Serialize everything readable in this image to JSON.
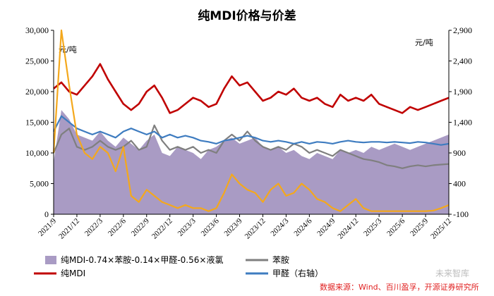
{
  "chart_data": {
    "type": "line",
    "title": "纯MDI价格与价差",
    "left_unit": "元/吨",
    "right_unit": "元/吨",
    "y_left": {
      "lim": [
        0,
        30000
      ],
      "ticks": [
        "0",
        "5,000",
        "10,000",
        "15,000",
        "20,000",
        "25,000",
        "30,000"
      ]
    },
    "y_right": {
      "lim": [
        -100,
        2900
      ],
      "ticks": [
        "-100",
        "400",
        "900",
        "1,400",
        "1,900",
        "2,400",
        "2,900"
      ]
    },
    "x_ticks": [
      "2021/9",
      "2021/12",
      "2022/3",
      "2022/6",
      "2022/9",
      "2022/12",
      "2023/3",
      "2023/6",
      "2023/9",
      "2023/12",
      "2024/3",
      "2024/6",
      "2024/9",
      "2024/12",
      "2025/3",
      "2025/6",
      "2025/9",
      "2025/12"
    ],
    "x_range": [
      "2021/9",
      "2025/12"
    ],
    "series": [
      {
        "name": "纯MDI-0.74×苯胺-0.14×甲醛-0.56×液氯",
        "kind": "area",
        "axis": "left",
        "color": "#a99bc4",
        "points": [
          [
            "2021/9",
            8500
          ],
          [
            "2021/10",
            17000
          ],
          [
            "2021/11",
            15500
          ],
          [
            "2021/12",
            13000
          ],
          [
            "2022/1",
            12500
          ],
          [
            "2022/2",
            12000
          ],
          [
            "2022/3",
            13500
          ],
          [
            "2022/4",
            12000
          ],
          [
            "2022/5",
            11000
          ],
          [
            "2022/6",
            12500
          ],
          [
            "2022/7",
            11500
          ],
          [
            "2022/8",
            10500
          ],
          [
            "2022/9",
            12000
          ],
          [
            "2022/10",
            13000
          ],
          [
            "2022/11",
            10000
          ],
          [
            "2022/12",
            9500
          ],
          [
            "2023/1",
            11000
          ],
          [
            "2023/2",
            10500
          ],
          [
            "2023/3",
            10000
          ],
          [
            "2023/4",
            9000
          ],
          [
            "2023/5",
            10500
          ],
          [
            "2023/6",
            11000
          ],
          [
            "2023/7",
            12000
          ],
          [
            "2023/8",
            12500
          ],
          [
            "2023/9",
            11500
          ],
          [
            "2023/10",
            12000
          ],
          [
            "2023/11",
            12500
          ],
          [
            "2023/12",
            11000
          ],
          [
            "2024/1",
            10500
          ],
          [
            "2024/2",
            11000
          ],
          [
            "2024/3",
            10000
          ],
          [
            "2024/4",
            10500
          ],
          [
            "2024/5",
            9500
          ],
          [
            "2024/6",
            9000
          ],
          [
            "2024/7",
            10000
          ],
          [
            "2024/8",
            9500
          ],
          [
            "2024/9",
            9000
          ],
          [
            "2024/10",
            10500
          ],
          [
            "2024/11",
            10000
          ],
          [
            "2024/12",
            10500
          ],
          [
            "2025/1",
            10000
          ],
          [
            "2025/2",
            11000
          ],
          [
            "2025/3",
            10500
          ],
          [
            "2025/4",
            11000
          ],
          [
            "2025/5",
            11500
          ],
          [
            "2025/6",
            11000
          ],
          [
            "2025/7",
            10500
          ],
          [
            "2025/8",
            11000
          ],
          [
            "2025/9",
            11500
          ],
          [
            "2025/10",
            12000
          ],
          [
            "2025/11",
            12500
          ],
          [
            "2025/12",
            13000
          ]
        ]
      },
      {
        "name": "苯胺",
        "kind": "line",
        "axis": "left",
        "color": "#7f7f7f",
        "points": [
          [
            "2021/9",
            10000
          ],
          [
            "2021/10",
            13000
          ],
          [
            "2021/11",
            14000
          ],
          [
            "2021/12",
            11000
          ],
          [
            "2022/1",
            10500
          ],
          [
            "2022/2",
            11000
          ],
          [
            "2022/3",
            12000
          ],
          [
            "2022/4",
            11000
          ],
          [
            "2022/5",
            10500
          ],
          [
            "2022/6",
            11000
          ],
          [
            "2022/7",
            12000
          ],
          [
            "2022/8",
            10500
          ],
          [
            "2022/9",
            11000
          ],
          [
            "2022/10",
            14500
          ],
          [
            "2022/11",
            12000
          ],
          [
            "2022/12",
            10500
          ],
          [
            "2023/1",
            11000
          ],
          [
            "2023/2",
            10500
          ],
          [
            "2023/3",
            11000
          ],
          [
            "2023/4",
            10000
          ],
          [
            "2023/5",
            10500
          ],
          [
            "2023/6",
            10000
          ],
          [
            "2023/7",
            12000
          ],
          [
            "2023/8",
            13000
          ],
          [
            "2023/9",
            12000
          ],
          [
            "2023/10",
            13500
          ],
          [
            "2023/11",
            12000
          ],
          [
            "2023/12",
            11000
          ],
          [
            "2024/1",
            10500
          ],
          [
            "2024/2",
            11000
          ],
          [
            "2024/3",
            10500
          ],
          [
            "2024/4",
            11500
          ],
          [
            "2024/5",
            11000
          ],
          [
            "2024/6",
            10000
          ],
          [
            "2024/7",
            10500
          ],
          [
            "2024/8",
            10000
          ],
          [
            "2024/9",
            9500
          ],
          [
            "2024/10",
            10500
          ],
          [
            "2024/11",
            10000
          ],
          [
            "2024/12",
            9500
          ],
          [
            "2025/1",
            9000
          ],
          [
            "2025/2",
            8800
          ],
          [
            "2025/3",
            8500
          ],
          [
            "2025/4",
            8000
          ],
          [
            "2025/5",
            7800
          ],
          [
            "2025/6",
            7500
          ],
          [
            "2025/7",
            7800
          ],
          [
            "2025/8",
            8000
          ],
          [
            "2025/9",
            7800
          ],
          [
            "2025/10",
            8000
          ],
          [
            "2025/11",
            8100
          ],
          [
            "2025/12",
            8200
          ]
        ]
      },
      {
        "name": "纯MDI",
        "kind": "line",
        "axis": "left",
        "color": "#c00000",
        "points": [
          [
            "2021/9",
            20500
          ],
          [
            "2021/10",
            21500
          ],
          [
            "2021/11",
            20000
          ],
          [
            "2021/12",
            19500
          ],
          [
            "2022/1",
            21000
          ],
          [
            "2022/2",
            22500
          ],
          [
            "2022/3",
            24500
          ],
          [
            "2022/4",
            22000
          ],
          [
            "2022/5",
            20000
          ],
          [
            "2022/6",
            18000
          ],
          [
            "2022/7",
            17000
          ],
          [
            "2022/8",
            18000
          ],
          [
            "2022/9",
            20000
          ],
          [
            "2022/10",
            21000
          ],
          [
            "2022/11",
            19000
          ],
          [
            "2022/12",
            16500
          ],
          [
            "2023/1",
            17000
          ],
          [
            "2023/2",
            18000
          ],
          [
            "2023/3",
            19000
          ],
          [
            "2023/4",
            18500
          ],
          [
            "2023/5",
            17500
          ],
          [
            "2023/6",
            18000
          ],
          [
            "2023/7",
            20500
          ],
          [
            "2023/8",
            22500
          ],
          [
            "2023/9",
            21000
          ],
          [
            "2023/10",
            21500
          ],
          [
            "2023/11",
            20000
          ],
          [
            "2023/12",
            18500
          ],
          [
            "2024/1",
            19000
          ],
          [
            "2024/2",
            20000
          ],
          [
            "2024/3",
            19500
          ],
          [
            "2024/4",
            20500
          ],
          [
            "2024/5",
            19000
          ],
          [
            "2024/6",
            18500
          ],
          [
            "2024/7",
            19000
          ],
          [
            "2024/8",
            18000
          ],
          [
            "2024/9",
            17500
          ],
          [
            "2024/10",
            19500
          ],
          [
            "2024/11",
            18500
          ],
          [
            "2024/12",
            19000
          ],
          [
            "2025/1",
            18500
          ],
          [
            "2025/2",
            19500
          ],
          [
            "2025/3",
            18000
          ],
          [
            "2025/4",
            17500
          ],
          [
            "2025/5",
            17000
          ],
          [
            "2025/6",
            16500
          ],
          [
            "2025/7",
            17500
          ],
          [
            "2025/8",
            17000
          ],
          [
            "2025/9",
            17500
          ],
          [
            "2025/10",
            18000
          ],
          [
            "2025/11",
            18500
          ],
          [
            "2025/12",
            19000
          ]
        ]
      },
      {
        "name": "甲醛（右轴）",
        "kind": "line",
        "axis": "right",
        "color": "#3e7cc0",
        "points": [
          [
            "2021/9",
            1250
          ],
          [
            "2021/10",
            1500
          ],
          [
            "2021/11",
            1400
          ],
          [
            "2021/12",
            1300
          ],
          [
            "2022/1",
            1250
          ],
          [
            "2022/2",
            1200
          ],
          [
            "2022/3",
            1250
          ],
          [
            "2022/4",
            1200
          ],
          [
            "2022/5",
            1150
          ],
          [
            "2022/6",
            1250
          ],
          [
            "2022/7",
            1300
          ],
          [
            "2022/8",
            1250
          ],
          [
            "2022/9",
            1200
          ],
          [
            "2022/10",
            1250
          ],
          [
            "2022/11",
            1150
          ],
          [
            "2022/12",
            1200
          ],
          [
            "2023/1",
            1150
          ],
          [
            "2023/2",
            1180
          ],
          [
            "2023/3",
            1150
          ],
          [
            "2023/4",
            1100
          ],
          [
            "2023/5",
            1080
          ],
          [
            "2023/6",
            1050
          ],
          [
            "2023/7",
            1100
          ],
          [
            "2023/8",
            1120
          ],
          [
            "2023/9",
            1150
          ],
          [
            "2023/10",
            1180
          ],
          [
            "2023/11",
            1150
          ],
          [
            "2023/12",
            1100
          ],
          [
            "2024/1",
            1080
          ],
          [
            "2024/2",
            1100
          ],
          [
            "2024/3",
            1080
          ],
          [
            "2024/4",
            1050
          ],
          [
            "2024/5",
            1080
          ],
          [
            "2024/6",
            1050
          ],
          [
            "2024/7",
            1080
          ],
          [
            "2024/8",
            1070
          ],
          [
            "2024/9",
            1050
          ],
          [
            "2024/10",
            1080
          ],
          [
            "2024/11",
            1100
          ],
          [
            "2024/12",
            1080
          ],
          [
            "2025/1",
            1070
          ],
          [
            "2025/2",
            1080
          ],
          [
            "2025/3",
            1080
          ],
          [
            "2025/4",
            1070
          ],
          [
            "2025/5",
            1080
          ],
          [
            "2025/6",
            1070
          ],
          [
            "2025/7",
            1060
          ],
          [
            "2025/8",
            1080
          ],
          [
            "2025/9",
            1070
          ],
          [
            "2025/10",
            1050
          ],
          [
            "2025/11",
            1030
          ],
          [
            "2025/12",
            1050
          ]
        ]
      },
      {
        "name": "液氯",
        "kind": "line",
        "axis": "right",
        "color": "#f4a81c",
        "points": [
          [
            "2021/9",
            900
          ],
          [
            "2021/10",
            2900
          ],
          [
            "2021/11",
            2000
          ],
          [
            "2021/12",
            1200
          ],
          [
            "2022/1",
            900
          ],
          [
            "2022/2",
            800
          ],
          [
            "2022/3",
            1000
          ],
          [
            "2022/4",
            900
          ],
          [
            "2022/5",
            600
          ],
          [
            "2022/6",
            1000
          ],
          [
            "2022/7",
            200
          ],
          [
            "2022/8",
            100
          ],
          [
            "2022/9",
            300
          ],
          [
            "2022/10",
            200
          ],
          [
            "2022/11",
            100
          ],
          [
            "2022/12",
            50
          ],
          [
            "2023/1",
            0
          ],
          [
            "2023/2",
            50
          ],
          [
            "2023/3",
            0
          ],
          [
            "2023/4",
            0
          ],
          [
            "2023/5",
            -50
          ],
          [
            "2023/6",
            0
          ],
          [
            "2023/7",
            250
          ],
          [
            "2023/8",
            550
          ],
          [
            "2023/9",
            400
          ],
          [
            "2023/10",
            300
          ],
          [
            "2023/11",
            250
          ],
          [
            "2023/12",
            100
          ],
          [
            "2024/1",
            300
          ],
          [
            "2024/2",
            400
          ],
          [
            "2024/3",
            200
          ],
          [
            "2024/4",
            250
          ],
          [
            "2024/5",
            400
          ],
          [
            "2024/6",
            300
          ],
          [
            "2024/7",
            150
          ],
          [
            "2024/8",
            100
          ],
          [
            "2024/9",
            0
          ],
          [
            "2024/10",
            -50
          ],
          [
            "2024/11",
            50
          ],
          [
            "2024/12",
            150
          ],
          [
            "2025/1",
            0
          ],
          [
            "2025/2",
            -50
          ],
          [
            "2025/3",
            -50
          ],
          [
            "2025/4",
            -50
          ],
          [
            "2025/5",
            -50
          ],
          [
            "2025/6",
            -50
          ],
          [
            "2025/7",
            -50
          ],
          [
            "2025/8",
            -50
          ],
          [
            "2025/9",
            -50
          ],
          [
            "2025/10",
            -40
          ],
          [
            "2025/11",
            0
          ],
          [
            "2025/12",
            50
          ]
        ]
      }
    ],
    "legend": [
      {
        "label": "纯MDI-0.74×苯胺-0.14×甲醛-0.56×液氯",
        "swatch": "area",
        "color": "#a99bc4"
      },
      {
        "label": "苯胺",
        "swatch": "line",
        "color": "#7f7f7f"
      },
      {
        "label": "纯MDI",
        "swatch": "line",
        "color": "#c00000"
      },
      {
        "label": "甲醛（右轴）",
        "swatch": "line",
        "color": "#3e7cc0"
      }
    ],
    "legend_position": "bottom",
    "source": "数据来源：Wind、百川盈孚，开源证券研究所",
    "grid": false
  }
}
